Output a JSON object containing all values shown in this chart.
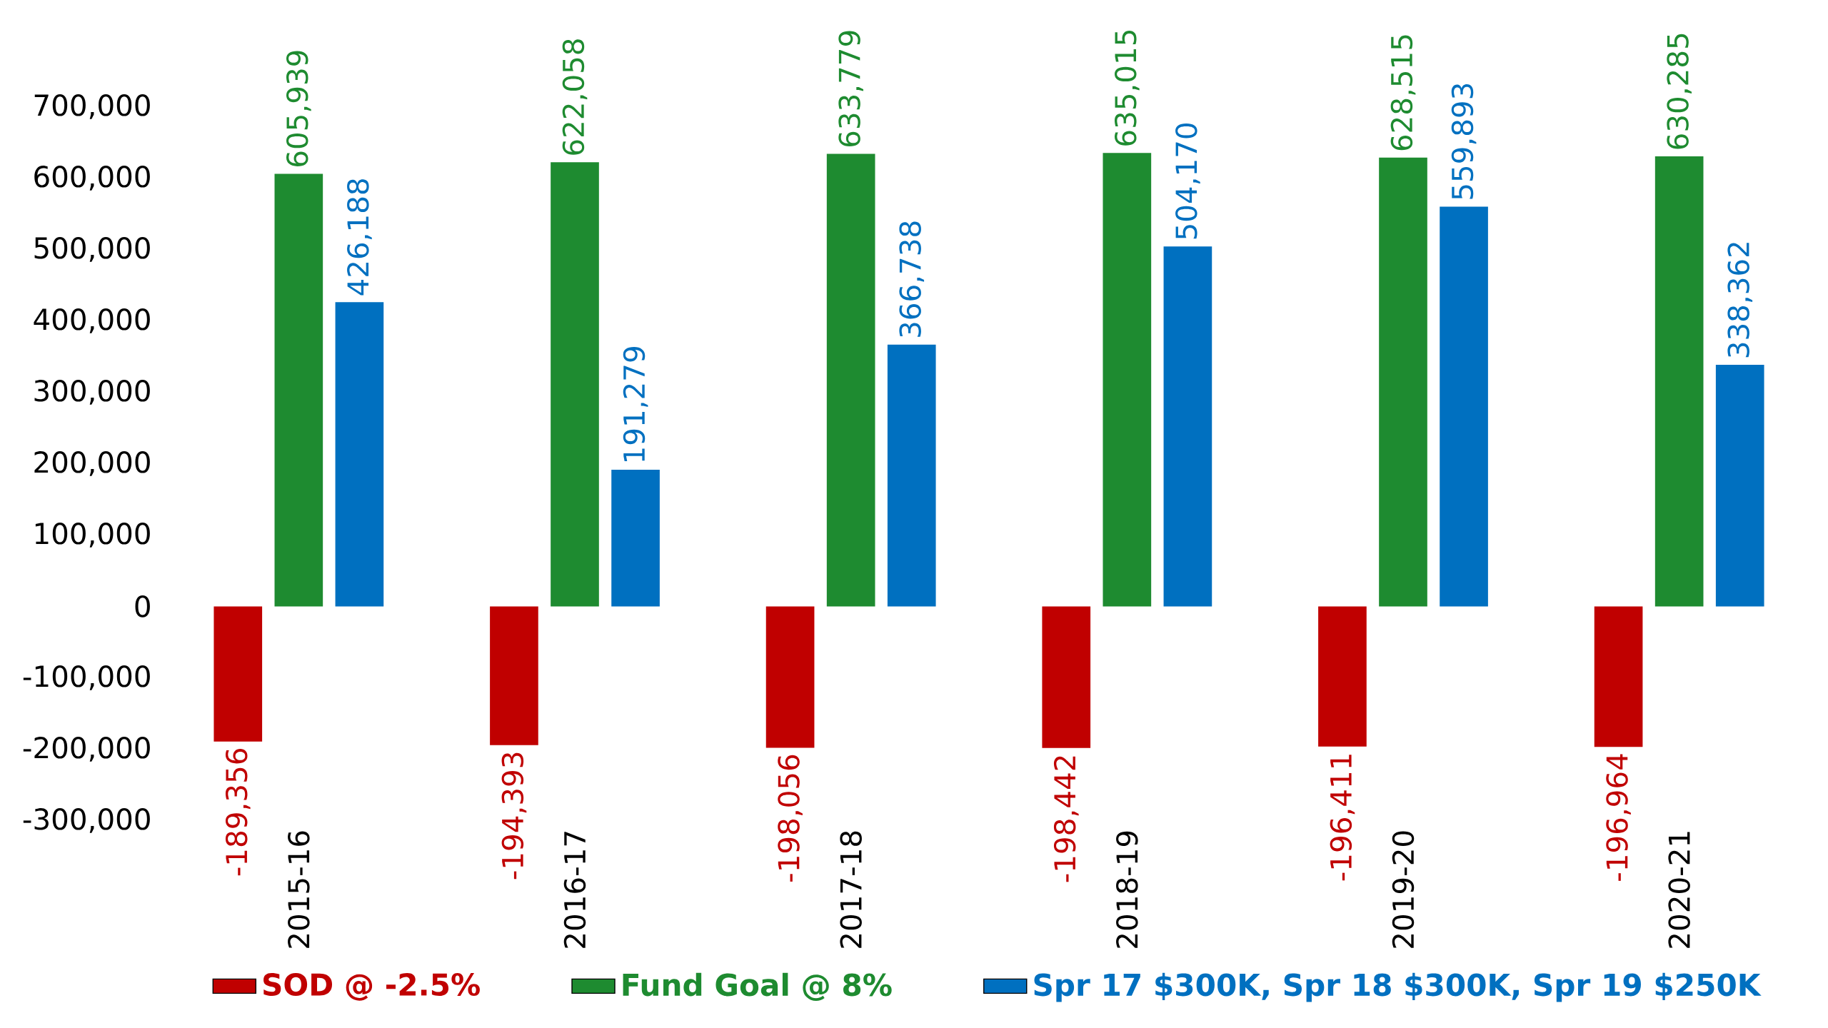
{
  "chart_data": {
    "type": "bar",
    "categories": [
      "2015-16",
      "2016-17",
      "2017-18",
      "2018-19",
      "2019-20",
      "2020-21"
    ],
    "series": [
      {
        "name": "SOD @ -2.5%",
        "color": "#c00000",
        "values": [
          -189356,
          -194393,
          -198056,
          -198442,
          -196411,
          -196964
        ],
        "value_labels": [
          "-189,356",
          "-194,393",
          "-198,056",
          "-198,442",
          "-196,411",
          "-196,964"
        ]
      },
      {
        "name": "Fund Goal @ 8%",
        "color": "#1e8b30",
        "values": [
          605939,
          622058,
          633779,
          635015,
          628515,
          630285
        ],
        "value_labels": [
          "605,939",
          "622,058",
          "633,779",
          "635,015",
          "628,515",
          "630,285"
        ]
      },
      {
        "name": "Spr 17 $300K, Spr 18 $300K, Spr 19 $250K",
        "color": "#0070c0",
        "values": [
          426188,
          191279,
          366738,
          504170,
          559893,
          338362
        ],
        "value_labels": [
          "426,188",
          "191,279",
          "366,738",
          "504,170",
          "559,893",
          "338,362"
        ]
      }
    ],
    "ylim": [
      -300000,
      700000
    ],
    "yticks": [
      {
        "value": -300000,
        "label": "-300,000"
      },
      {
        "value": -200000,
        "label": "-200,000"
      },
      {
        "value": -100000,
        "label": "-100,000"
      },
      0,
      {
        "value": 100000,
        "label": "100,000"
      },
      {
        "value": 200000,
        "label": "200,000"
      },
      {
        "value": 300000,
        "label": "300,000"
      },
      {
        "value": 400000,
        "label": "400,000"
      },
      {
        "value": 500000,
        "label": "500,000"
      },
      {
        "value": 600000,
        "label": "600,000"
      },
      {
        "value": 700000,
        "label": "700,000"
      }
    ],
    "grid": false,
    "legend": "bottom"
  }
}
